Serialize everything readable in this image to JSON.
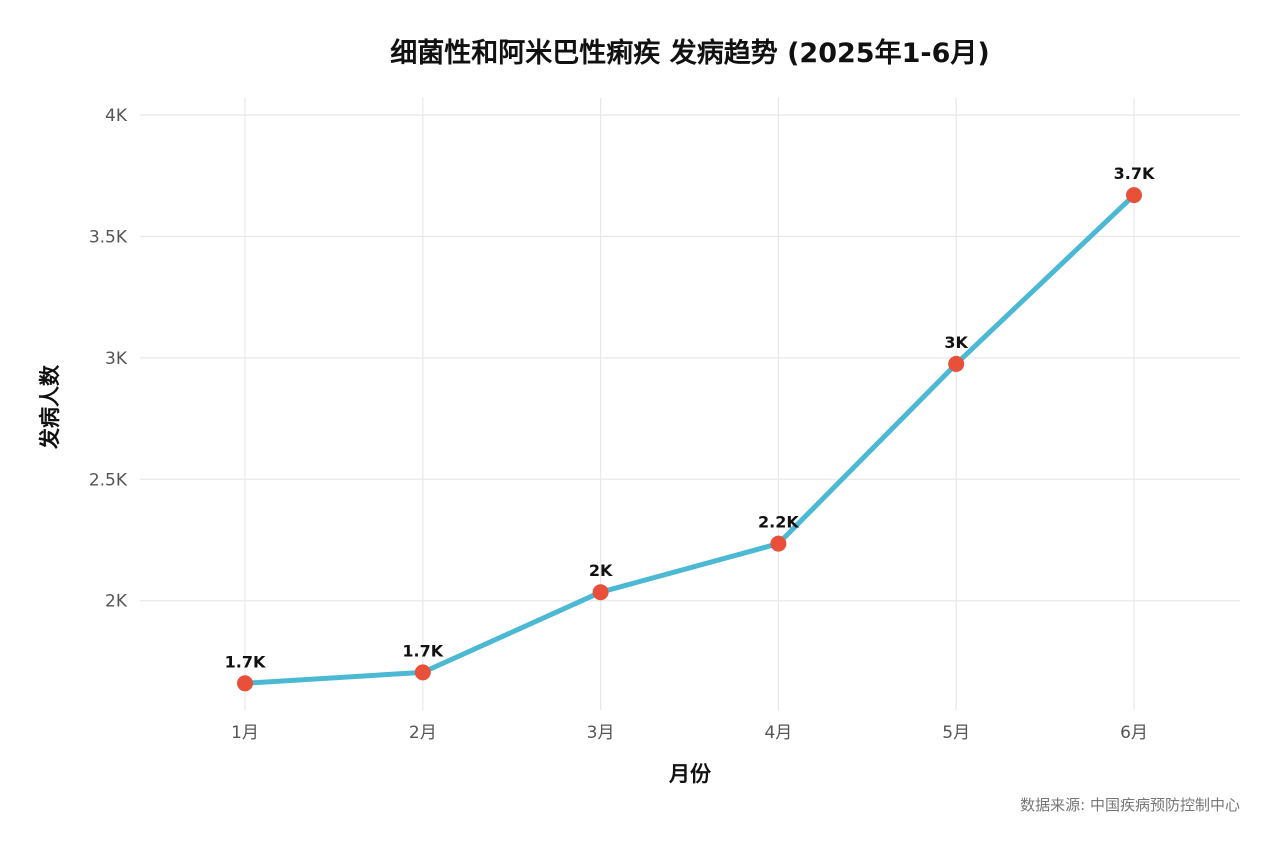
{
  "chart_data": {
    "type": "line",
    "title": "细菌性和阿米巴性痢疾 发病趋势 (2025年1-6月)",
    "xlabel": "月份",
    "ylabel": "发病人数",
    "caption": "数据来源: 中国疾病预防控制中心",
    "categories": [
      "1月",
      "2月",
      "3月",
      "4月",
      "5月",
      "6月"
    ],
    "series": [
      {
        "values": [
          1660,
          1705,
          2035,
          2235,
          2975,
          3670
        ],
        "labels": [
          "1.7K",
          "1.7K",
          "2K",
          "2.2K",
          "3K",
          "3.7K"
        ]
      }
    ],
    "ylim": [
      1550,
      4070
    ],
    "yticks": [
      2000,
      2500,
      3000,
      3500,
      4000
    ],
    "ytick_labels": [
      "2K",
      "2.5K",
      "3K",
      "3.5K",
      "4K"
    ],
    "grid": true,
    "legend": "none",
    "colors": {
      "line": "#4BB8D4",
      "point": "#E8503A"
    }
  }
}
